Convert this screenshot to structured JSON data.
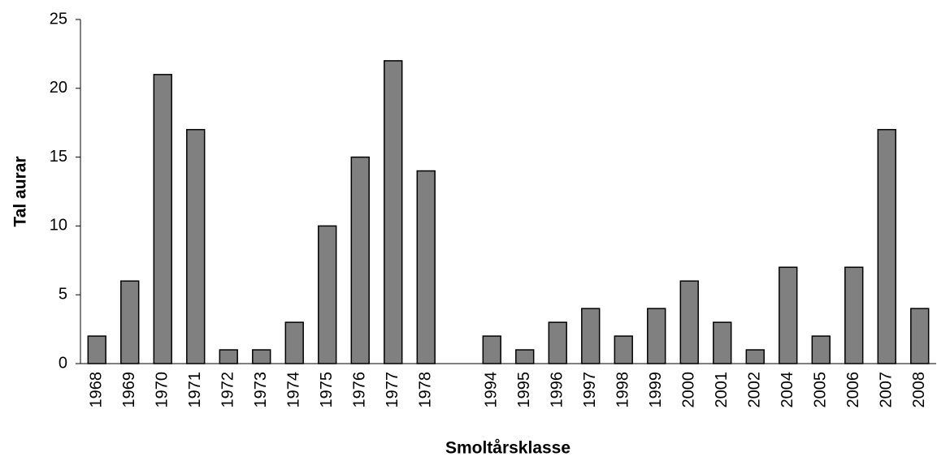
{
  "chart_data": {
    "type": "bar",
    "x_label": "Smoltårsklasse",
    "y_label": "Tal aurar",
    "categories": [
      "1968",
      "1969",
      "1970",
      "1971",
      "1972",
      "1973",
      "1974",
      "1975",
      "1976",
      "1977",
      "1978",
      null,
      "1994",
      "1995",
      "1996",
      "1997",
      "1998",
      "1999",
      "2000",
      "2001",
      "2002",
      "2004",
      "2005",
      "2006",
      "2007",
      "2008"
    ],
    "values": [
      2,
      6,
      21,
      17,
      1,
      1,
      3,
      10,
      15,
      22,
      14,
      null,
      2,
      1,
      3,
      4,
      2,
      4,
      6,
      3,
      1,
      7,
      2,
      7,
      17,
      4
    ],
    "color": "#808080",
    "ylim": [
      0,
      25
    ],
    "yticks": [
      0,
      5,
      10,
      15,
      20,
      25
    ],
    "grid": false
  }
}
